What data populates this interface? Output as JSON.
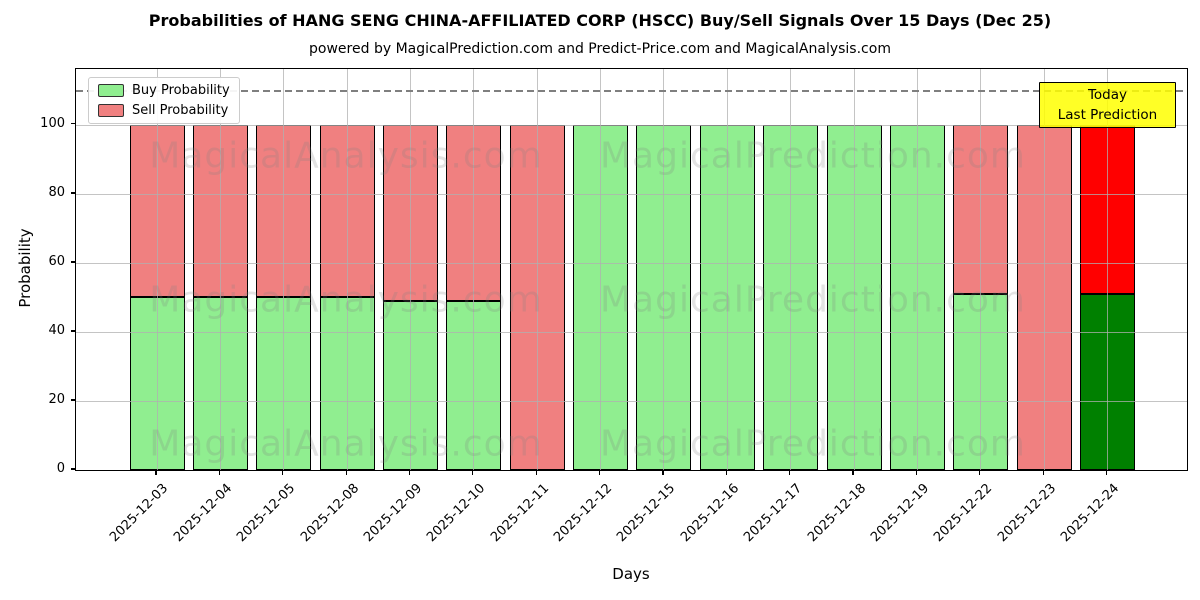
{
  "title": "Probabilities of HANG SENG CHINA-AFFILIATED CORP (HSCC) Buy/Sell Signals Over 15 Days (Dec 25)",
  "subtitle": "powered by MagicalPrediction.com and Predict-Price.com and MagicalAnalysis.com",
  "axes": {
    "xlabel": "Days",
    "ylabel": "Probability"
  },
  "legend": [
    {
      "label": "Buy Probability",
      "color": "#90EE90"
    },
    {
      "label": "Sell Probability",
      "color": "#F08080"
    }
  ],
  "annotation": {
    "lines": [
      "Today",
      "Last Prediction"
    ],
    "bg_color": "#FFFF00"
  },
  "watermarks": [
    "MagicalAnalysis.com",
    "MagicalPrediction.com"
  ],
  "chart_data": {
    "type": "bar",
    "stacked": true,
    "categories": [
      "2025-12-03",
      "2025-12-04",
      "2025-12-05",
      "2025-12-08",
      "2025-12-09",
      "2025-12-10",
      "2025-12-11",
      "2025-12-12",
      "2025-12-15",
      "2025-12-16",
      "2025-12-17",
      "2025-12-18",
      "2025-12-19",
      "2025-12-22",
      "2025-12-23",
      "2025-12-24"
    ],
    "series": [
      {
        "name": "Buy Probability",
        "color": "#90EE90",
        "today_color": "#008000",
        "values": [
          50,
          50,
          50,
          50,
          49,
          49,
          0,
          100,
          100,
          100,
          100,
          100,
          100,
          51,
          0,
          51
        ]
      },
      {
        "name": "Sell Probability",
        "color": "#F08080",
        "today_color": "#FF0000",
        "values": [
          50,
          50,
          50,
          50,
          51,
          51,
          100,
          0,
          0,
          0,
          0,
          0,
          0,
          49,
          100,
          49
        ]
      }
    ],
    "title": "Probabilities of HANG SENG CHINA-AFFILIATED CORP (HSCC) Buy/Sell Signals Over 15 Days (Dec 25)",
    "xlabel": "Days",
    "ylabel": "Probability",
    "yticks": [
      0,
      20,
      40,
      60,
      80,
      100
    ],
    "ylim": [
      0,
      116.2
    ],
    "dashed_line_y": 110,
    "today_index": 15,
    "grid": true,
    "legend_position": "upper left"
  }
}
